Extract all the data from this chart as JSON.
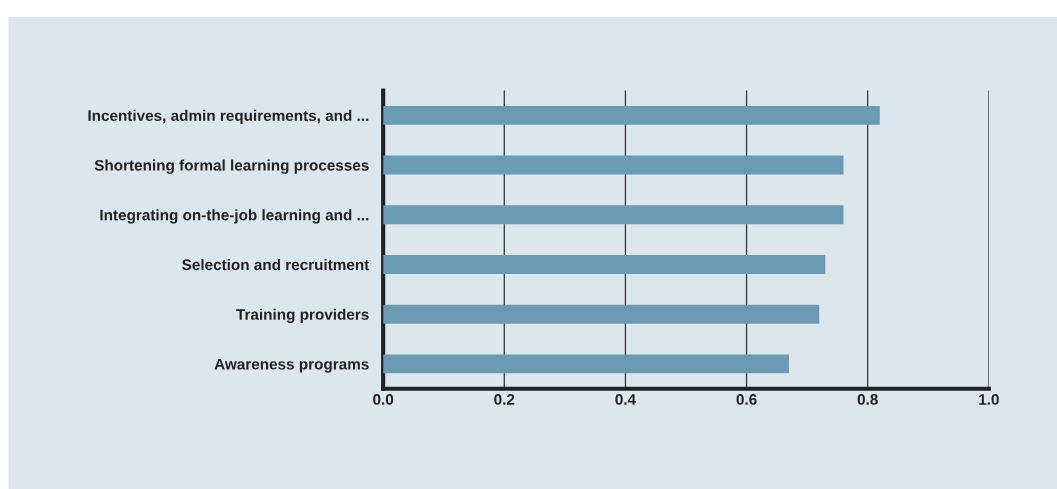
{
  "chart_data": {
    "type": "bar",
    "orientation": "horizontal",
    "categories": [
      "Incentives, admin requirements, and ...",
      "Shortening formal learning processes",
      "Integrating on-the-job learning and ...",
      "Selection and recruitment",
      "Training providers",
      "Awareness programs"
    ],
    "values": [
      0.82,
      0.76,
      0.76,
      0.73,
      0.72,
      0.67
    ],
    "color": "#6a9ab4",
    "xlim": [
      0,
      1
    ],
    "xticks": [
      "0.0",
      0.2,
      0.4,
      0.6,
      0.8,
      "1.0"
    ],
    "grid": "x"
  }
}
